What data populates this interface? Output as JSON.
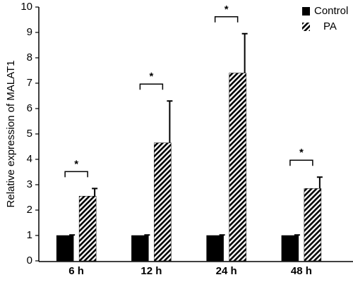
{
  "chart_data": {
    "type": "bar",
    "y_label": "Relative expression of MALAT1",
    "categories": [
      "6 h",
      "12 h",
      "24 h",
      "48 h"
    ],
    "series": [
      {
        "name": "Control",
        "color": "#000000",
        "pattern": "solid",
        "values": [
          1,
          1,
          1,
          1
        ],
        "errors": [
          0.02,
          0.02,
          0.02,
          0.02
        ]
      },
      {
        "name": "PA",
        "color": "#000000",
        "pattern": "hatch",
        "values": [
          2.55,
          4.65,
          7.4,
          2.85
        ],
        "errors": [
          0.3,
          1.65,
          1.55,
          0.45
        ]
      }
    ],
    "annotations": [
      "*",
      "*",
      "*",
      "*"
    ],
    "ylim": [
      0,
      10
    ],
    "yticks": [
      0,
      1,
      2,
      3,
      4,
      5,
      6,
      7,
      8,
      9,
      10
    ],
    "legend": "upper right",
    "grid": false
  }
}
